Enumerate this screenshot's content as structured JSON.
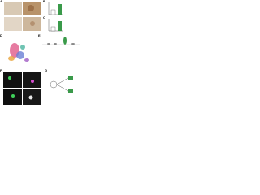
{
  "figure": {
    "panels": [
      {
        "label": "A"
      },
      {
        "label": "B"
      },
      {
        "label": "C"
      },
      {
        "label": "D"
      },
      {
        "label": "E"
      },
      {
        "label": "F"
      },
      {
        "label": "G"
      }
    ]
  }
}
